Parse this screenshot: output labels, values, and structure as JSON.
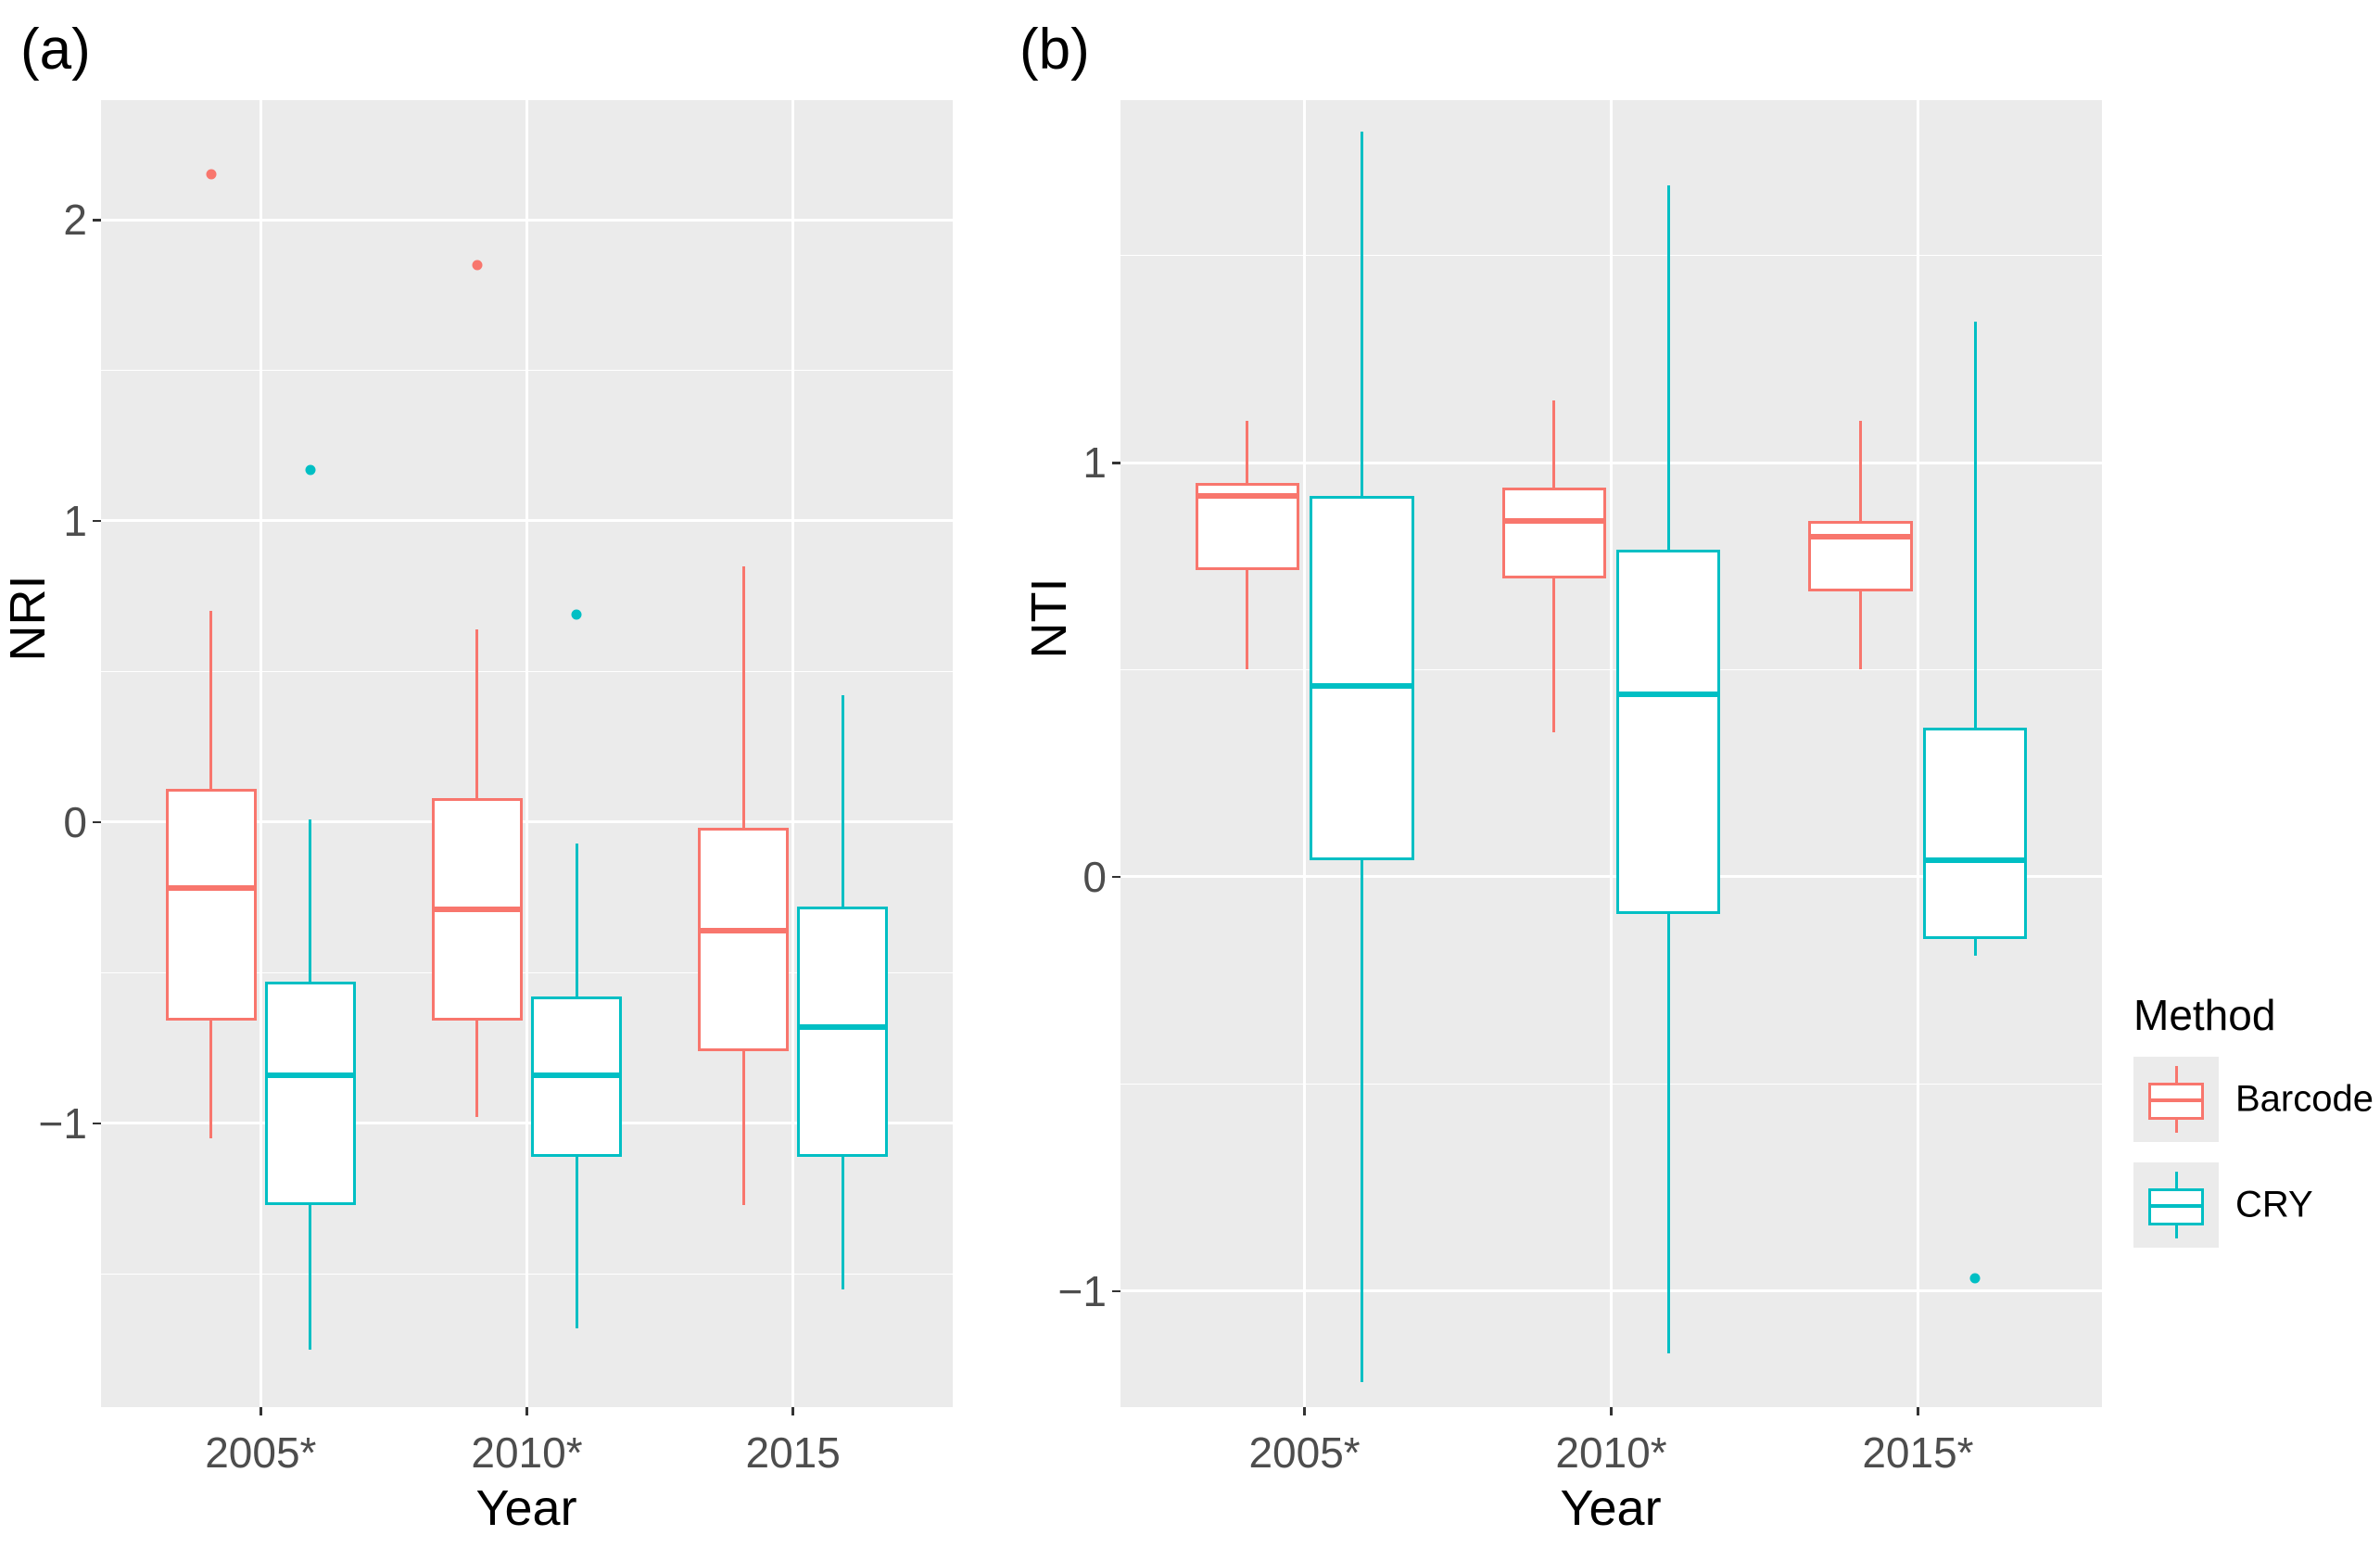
{
  "figure": {
    "background": "#ffffff",
    "panel_background": "#EBEBEB",
    "gridline_color": "#ffffff",
    "axis_text_color": "#4d4d4d"
  },
  "legend": {
    "title": "Method",
    "items": [
      {
        "label": "Barcode",
        "color": "#F8766D"
      },
      {
        "label": "CRY",
        "color": "#00BFC4"
      }
    ]
  },
  "chart_data": [
    {
      "type": "boxplot",
      "panel_label": "(a)",
      "title": "(a)",
      "xlabel": "Year",
      "ylabel": "NRI",
      "categories": [
        "2005*",
        "2010*",
        "2015"
      ],
      "y_ticks": [
        {
          "v": 2,
          "label": "2"
        },
        {
          "v": 1,
          "label": "1"
        },
        {
          "v": 0,
          "label": "0"
        },
        {
          "v": -1,
          "label": "−1"
        }
      ],
      "y_minor": [
        1.5,
        0.5,
        -0.5,
        -1.5
      ],
      "ylim": [
        -1.942,
        2.397
      ],
      "grid": "on",
      "legend_position": "none",
      "series": [
        {
          "name": "Barcode",
          "color": "#F8766D",
          "boxes": [
            {
              "lo": -1.05,
              "q1": -0.66,
              "med": -0.22,
              "q3": 0.11,
              "hi": 0.7,
              "outliers": [
                2.15
              ]
            },
            {
              "lo": -0.98,
              "q1": -0.66,
              "med": -0.29,
              "q3": 0.08,
              "hi": 0.64,
              "outliers": [
                1.85
              ]
            },
            {
              "lo": -1.27,
              "q1": -0.76,
              "med": -0.36,
              "q3": -0.02,
              "hi": 0.85,
              "outliers": []
            }
          ]
        },
        {
          "name": "CRY",
          "color": "#00BFC4",
          "boxes": [
            {
              "lo": -1.75,
              "q1": -1.27,
              "med": -0.84,
              "q3": -0.53,
              "hi": 0.01,
              "outliers": [
                1.17
              ]
            },
            {
              "lo": -1.68,
              "q1": -1.11,
              "med": -0.84,
              "q3": -0.58,
              "hi": -0.07,
              "outliers": [
                0.69
              ]
            },
            {
              "lo": -1.55,
              "q1": -1.11,
              "med": -0.68,
              "q3": -0.28,
              "hi": 0.42,
              "outliers": []
            }
          ]
        }
      ]
    },
    {
      "type": "boxplot",
      "panel_label": "(b)",
      "title": "(b)",
      "xlabel": "Year",
      "ylabel": "NTI",
      "categories": [
        "2005*",
        "2010*",
        "2015*"
      ],
      "y_ticks": [
        {
          "v": 1,
          "label": "1"
        },
        {
          "v": 0,
          "label": "0"
        },
        {
          "v": -1,
          "label": "−1"
        }
      ],
      "y_minor": [
        1.5,
        0.5,
        -0.5
      ],
      "ylim": [
        -1.28,
        1.875
      ],
      "grid": "on",
      "legend_position": "right",
      "series": [
        {
          "name": "Barcode",
          "color": "#F8766D",
          "boxes": [
            {
              "lo": 0.5,
              "q1": 0.74,
              "med": 0.92,
              "q3": 0.95,
              "hi": 1.1,
              "outliers": []
            },
            {
              "lo": 0.35,
              "q1": 0.72,
              "med": 0.86,
              "q3": 0.94,
              "hi": 1.15,
              "outliers": []
            },
            {
              "lo": 0.5,
              "q1": 0.69,
              "med": 0.82,
              "q3": 0.86,
              "hi": 1.1,
              "outliers": []
            }
          ]
        },
        {
          "name": "CRY",
          "color": "#00BFC4",
          "boxes": [
            {
              "lo": -1.22,
              "q1": 0.04,
              "med": 0.46,
              "q3": 0.92,
              "hi": 1.8,
              "outliers": []
            },
            {
              "lo": -1.15,
              "q1": -0.09,
              "med": 0.44,
              "q3": 0.79,
              "hi": 1.67,
              "outliers": []
            },
            {
              "lo": -0.19,
              "q1": -0.15,
              "med": 0.04,
              "q3": 0.36,
              "hi": 1.34,
              "outliers": [
                -0.97
              ]
            }
          ]
        }
      ]
    }
  ]
}
